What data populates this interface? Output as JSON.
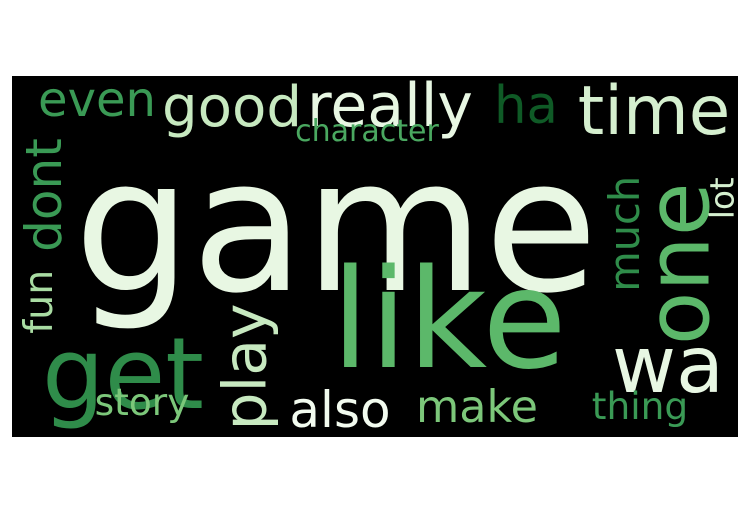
{
  "background_color": "#000000",
  "words": [
    {
      "id": "game",
      "text": "game",
      "color": "#e8f7e3",
      "rotated": false
    },
    {
      "id": "like",
      "text": "like",
      "color": "#5cb86a",
      "rotated": false
    },
    {
      "id": "one",
      "text": "one",
      "color": "#5cb86a",
      "rotated": true
    },
    {
      "id": "get",
      "text": "get",
      "color": "#2f8c4a",
      "rotated": false
    },
    {
      "id": "wa",
      "text": "wa",
      "color": "#e8f7e3",
      "rotated": false
    },
    {
      "id": "time",
      "text": "time",
      "color": "#d5efcf",
      "rotated": false
    },
    {
      "id": "good",
      "text": "good",
      "color": "#c7e9c0",
      "rotated": false
    },
    {
      "id": "really",
      "text": "really",
      "color": "#e8f7e3",
      "rotated": false
    },
    {
      "id": "ha",
      "text": "ha",
      "color": "#0f5a26",
      "rotated": false
    },
    {
      "id": "even",
      "text": "even",
      "color": "#3a9a55",
      "rotated": false
    },
    {
      "id": "play",
      "text": "play",
      "color": "#c7e9c0",
      "rotated": true
    },
    {
      "id": "dont",
      "text": "dont",
      "color": "#3a9a55",
      "rotated": true
    },
    {
      "id": "fun",
      "text": "fun",
      "color": "#a9dca3",
      "rotated": true
    },
    {
      "id": "make",
      "text": "make",
      "color": "#7cc77a",
      "rotated": false
    },
    {
      "id": "also",
      "text": "also",
      "color": "#f2fbef",
      "rotated": false
    },
    {
      "id": "much",
      "text": "much",
      "color": "#2f8c4a",
      "rotated": true
    },
    {
      "id": "lot",
      "text": "lot",
      "color": "#d5efcf",
      "rotated": true
    },
    {
      "id": "thing",
      "text": "thing",
      "color": "#3a9a55",
      "rotated": false
    },
    {
      "id": "story",
      "text": "story",
      "color": "#7cc77a",
      "rotated": false
    },
    {
      "id": "character",
      "text": "character",
      "color": "#4aa860",
      "rotated": false
    }
  ]
}
